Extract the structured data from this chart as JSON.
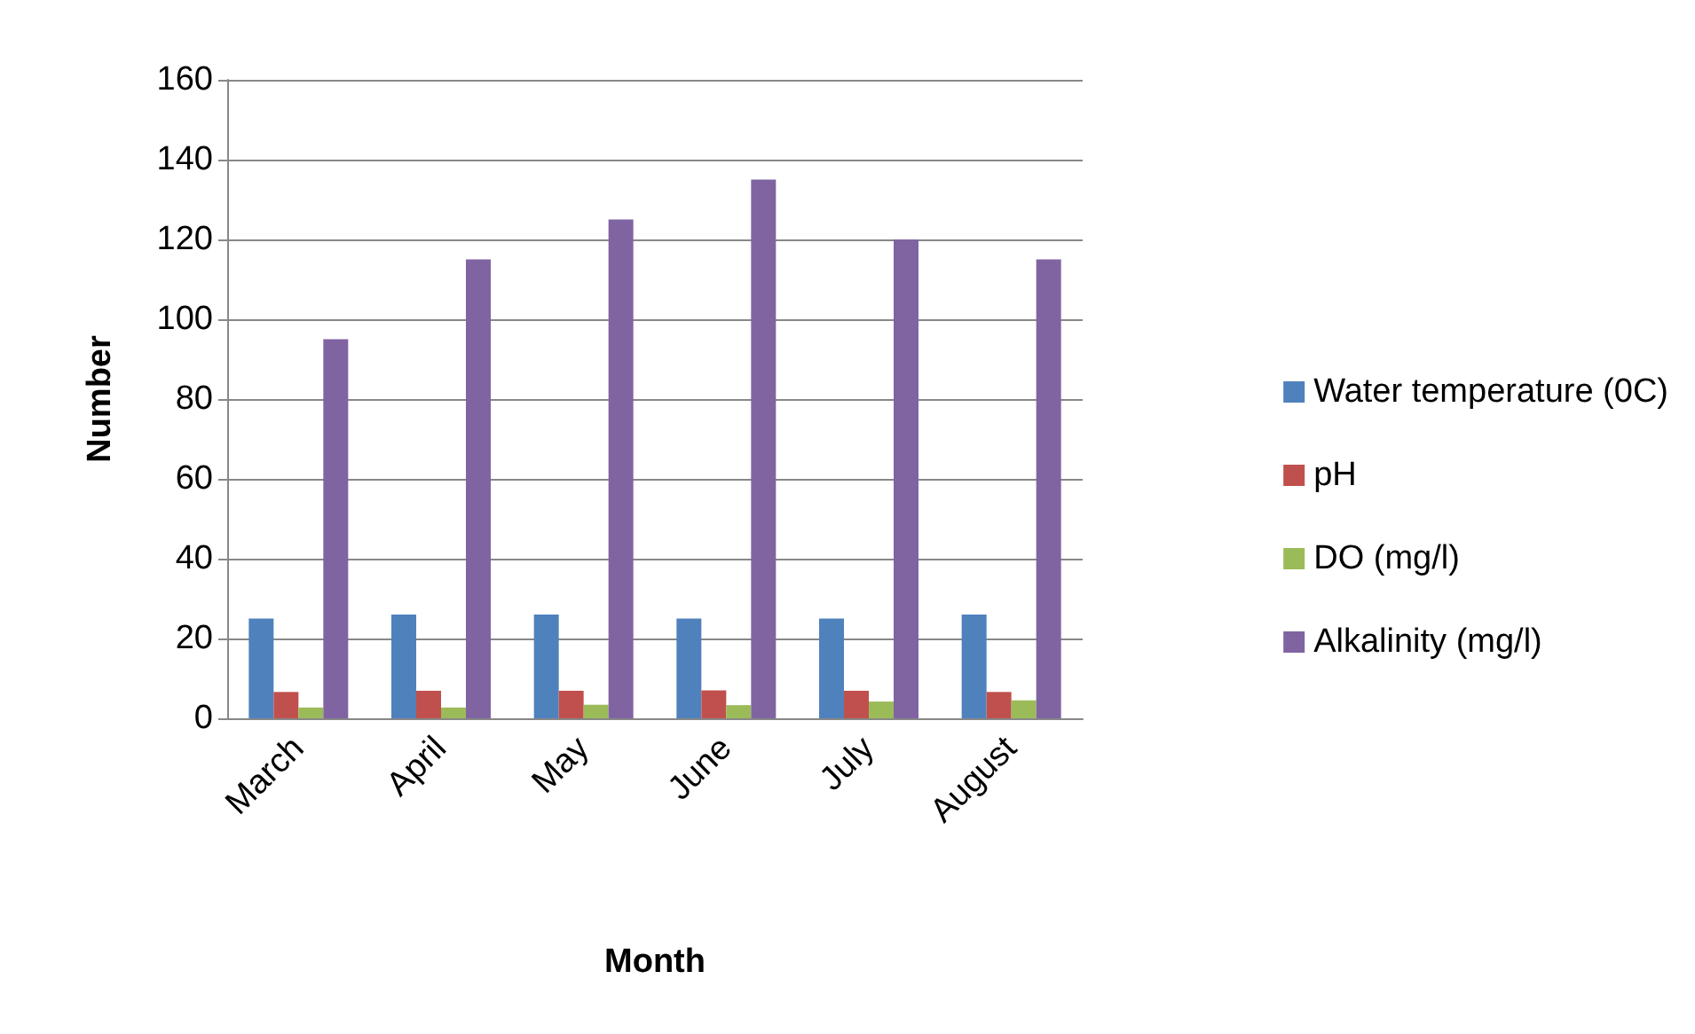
{
  "chart_data": {
    "type": "bar",
    "xlabel": "Month",
    "ylabel": "Number",
    "categories": [
      "March",
      "April",
      "May",
      "June",
      "July",
      "August"
    ],
    "series": [
      {
        "name": "Water temperature (0C)",
        "color": "#4f81bd",
        "values": [
          25,
          26,
          26,
          25,
          25,
          26
        ]
      },
      {
        "name": "pH",
        "color": "#c0504d",
        "values": [
          6.6,
          6.9,
          6.9,
          7.0,
          6.9,
          6.6
        ]
      },
      {
        "name": "DO (mg/l)",
        "color": "#9bbb59",
        "values": [
          2.7,
          2.7,
          3.4,
          3.3,
          4.2,
          4.5
        ]
      },
      {
        "name": "Alkalinity (mg/l)",
        "color": "#8064a2",
        "values": [
          95,
          115,
          125,
          135,
          120,
          115
        ]
      }
    ],
    "ylim": [
      0,
      160
    ],
    "yticks": [
      0,
      20,
      40,
      60,
      80,
      100,
      120,
      140,
      160
    ],
    "grid": "y",
    "legend": "right"
  }
}
